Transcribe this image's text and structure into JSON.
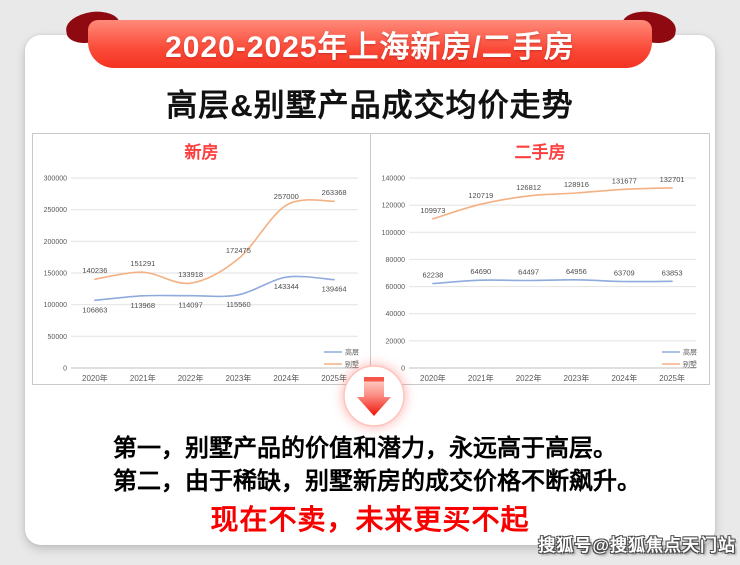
{
  "banner": {
    "title": "2020-2025年上海新房/二手房"
  },
  "heading": "高层&别墅产品成交均价走势",
  "chart_data": [
    {
      "type": "line",
      "title": "新房",
      "categories": [
        "2020年",
        "2021年",
        "2022年",
        "2023年",
        "2024年",
        "2025年"
      ],
      "series": [
        {
          "name": "高层",
          "color": "#8faadc",
          "label_position": "below",
          "values": [
            106863,
            113968,
            114097,
            115560,
            143344,
            139464
          ]
        },
        {
          "name": "别墅",
          "color": "#f4b183",
          "label_position": "above",
          "values": [
            140236,
            151291,
            133918,
            172475,
            257000,
            263368
          ]
        }
      ],
      "ylim": [
        0,
        300000
      ],
      "ystep": 50000,
      "grid": true,
      "legend_position": "bottom-right"
    },
    {
      "type": "line",
      "title": "二手房",
      "categories": [
        "2020年",
        "2021年",
        "2022年",
        "2023年",
        "2024年",
        "2025年"
      ],
      "series": [
        {
          "name": "高层",
          "color": "#8faadc",
          "label_position": "above",
          "values": [
            62238,
            64690,
            64497,
            64956,
            63709,
            63853
          ]
        },
        {
          "name": "别墅",
          "color": "#f4b183",
          "label_position": "above",
          "values": [
            109973,
            120719,
            126812,
            128916,
            131677,
            132701
          ]
        }
      ],
      "ylim": [
        0,
        140000
      ],
      "ystep": 20000,
      "grid": true,
      "legend_position": "bottom-right"
    }
  ],
  "arrow_icon": "down-arrow",
  "notes": [
    "第一，别墅产品的价值和潜力，永远高于高层。",
    "第二，由于稀缺，别墅新房的成交价格不断飙升。"
  ],
  "highlight": "现在不卖，未来更买不起",
  "watermark": "搜狐号@搜狐焦点天门站",
  "colors": {
    "background": "#e9e9e9",
    "banner_top": "#ff8a7a",
    "banner_bottom": "#f43321",
    "banner_fold": "#8e0a10",
    "chart_title_red": "#fc3f3f",
    "highlight_red": "#f80000",
    "line_blue": "#8faadc",
    "line_orange": "#f4b183"
  }
}
